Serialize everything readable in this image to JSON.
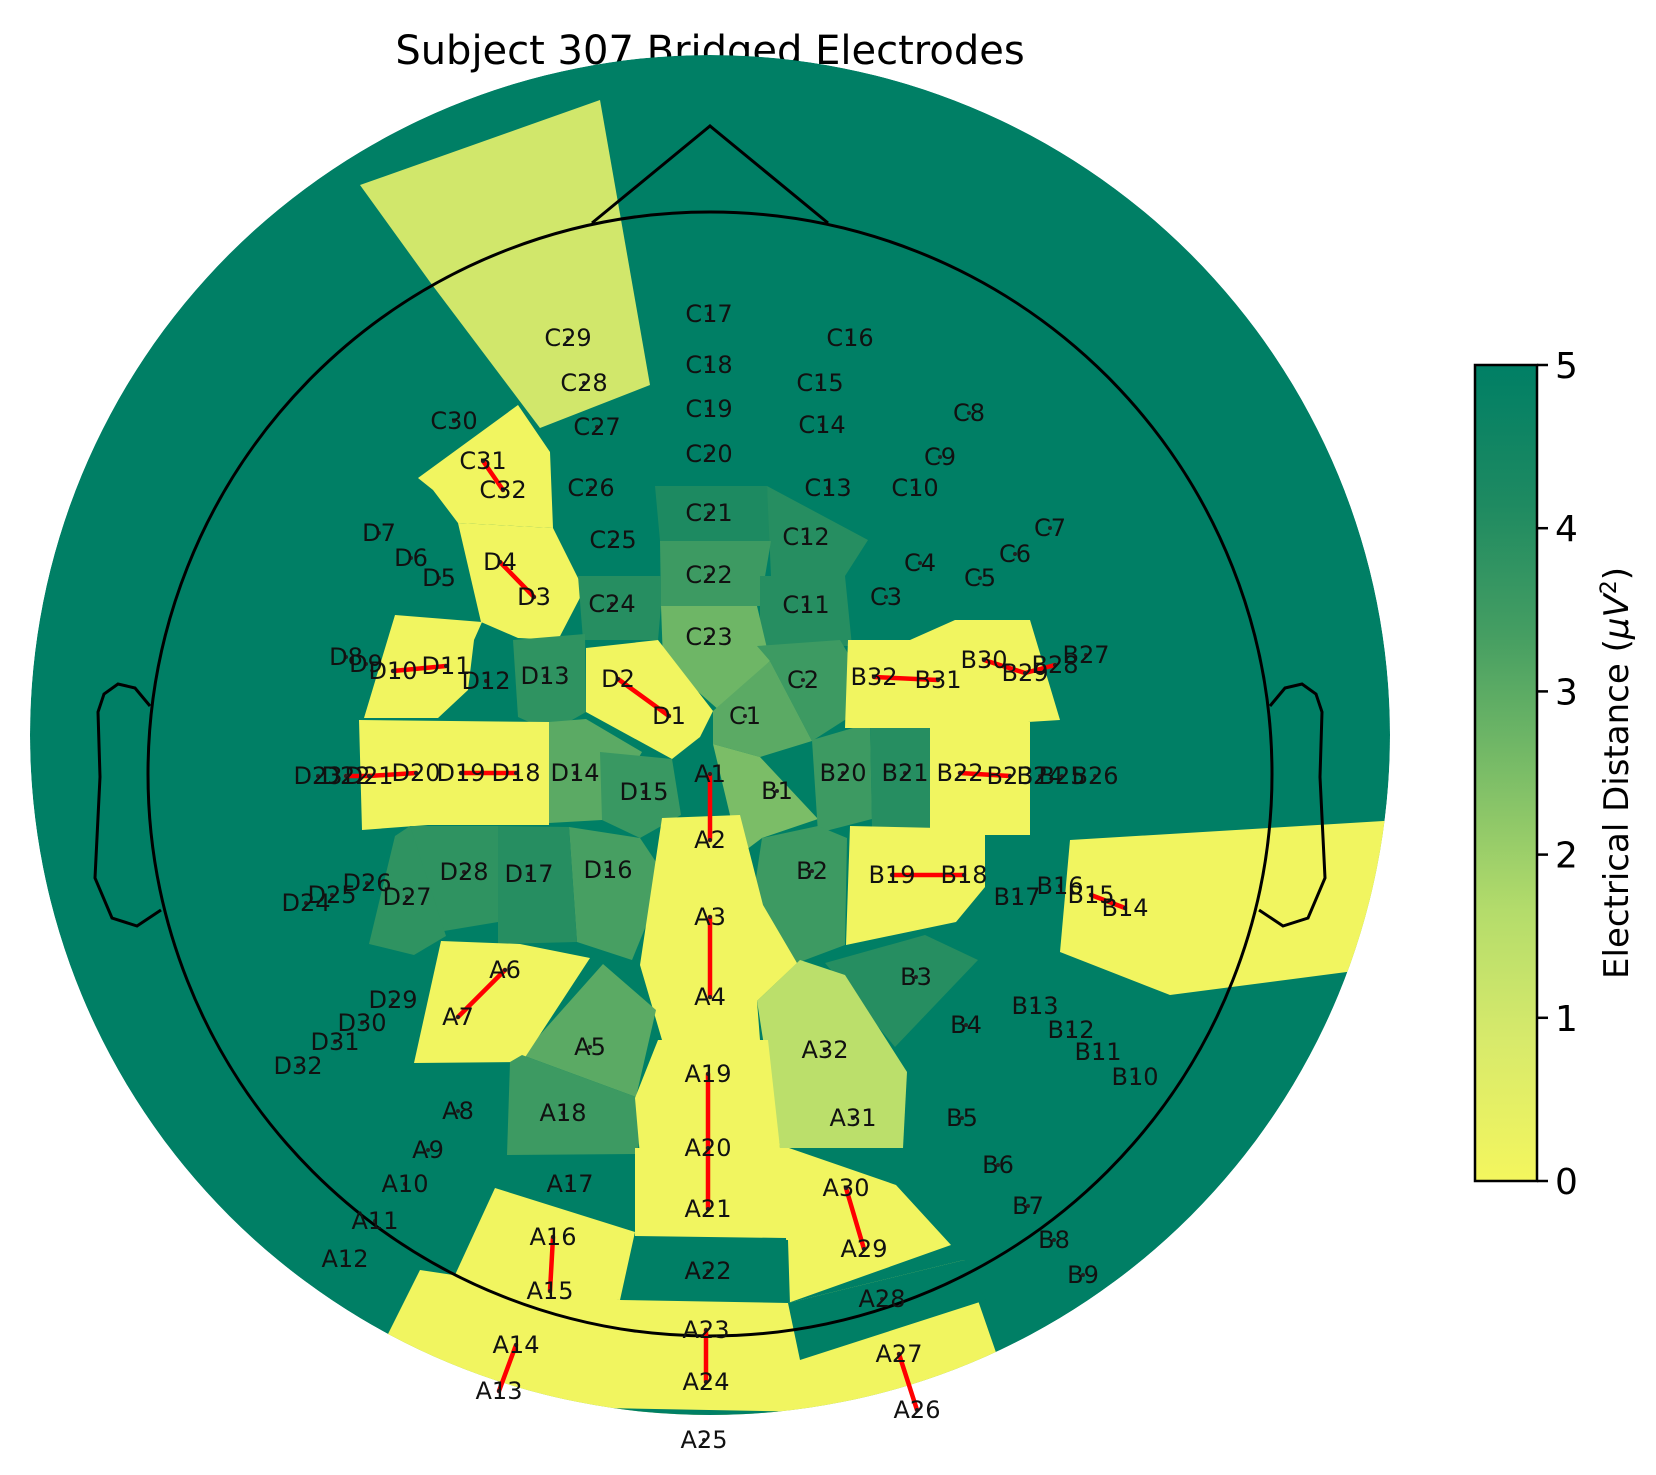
{
  "chart_data": {
    "type": "heatmap",
    "title": "Subject 307 Bridged Electrodes",
    "colorbar": {
      "label_prefix": "Electrical Distance (",
      "label_unit": "μV",
      "label_exp": "2",
      "label_suffix": ")",
      "min": 0,
      "max": 5,
      "ticks": [
        "0",
        "1",
        "2",
        "3",
        "4",
        "5"
      ],
      "colors": [
        "#f4f65e",
        "#d8ea6b",
        "#b4dc6b",
        "#7bbd67",
        "#459e62",
        "#1e8a61",
        "#007f65"
      ]
    },
    "background_level": 5,
    "electrodes": [
      {
        "name": "A1",
        "value": 0.1
      },
      {
        "name": "A2",
        "value": 0.1
      },
      {
        "name": "A3",
        "value": 0.1
      },
      {
        "name": "A4",
        "value": 0.1
      },
      {
        "name": "A5",
        "value": 3.0
      },
      {
        "name": "A6",
        "value": 0.1
      },
      {
        "name": "A7",
        "value": 0.1
      },
      {
        "name": "A8",
        "value": 5.0
      },
      {
        "name": "A9",
        "value": 5.0
      },
      {
        "name": "A10",
        "value": 5.0
      },
      {
        "name": "A11",
        "value": 5.0
      },
      {
        "name": "A12",
        "value": 5.0
      },
      {
        "name": "A13",
        "value": 0.1
      },
      {
        "name": "A14",
        "value": 0.1
      },
      {
        "name": "A15",
        "value": 0.1
      },
      {
        "name": "A16",
        "value": 0.1
      },
      {
        "name": "A17",
        "value": 5.0
      },
      {
        "name": "A18",
        "value": 3.5
      },
      {
        "name": "A19",
        "value": 0.1
      },
      {
        "name": "A20",
        "value": 0.1
      },
      {
        "name": "A21",
        "value": 0.1
      },
      {
        "name": "A22",
        "value": 5.0
      },
      {
        "name": "A23",
        "value": 0.1
      },
      {
        "name": "A24",
        "value": 0.1
      },
      {
        "name": "A25",
        "value": 5.0
      },
      {
        "name": "A26",
        "value": 0.1
      },
      {
        "name": "A27",
        "value": 0.1
      },
      {
        "name": "A28",
        "value": 5.0
      },
      {
        "name": "A29",
        "value": 0.1
      },
      {
        "name": "A30",
        "value": 0.1
      },
      {
        "name": "A31",
        "value": 1.5
      },
      {
        "name": "A32",
        "value": 1.5
      },
      {
        "name": "B1",
        "value": 2.5
      },
      {
        "name": "B2",
        "value": 3.5
      },
      {
        "name": "B3",
        "value": 4.0
      },
      {
        "name": "B4",
        "value": 5.0
      },
      {
        "name": "B5",
        "value": 5.0
      },
      {
        "name": "B6",
        "value": 5.0
      },
      {
        "name": "B7",
        "value": 5.0
      },
      {
        "name": "B8",
        "value": 5.0
      },
      {
        "name": "B9",
        "value": 5.0
      },
      {
        "name": "B10",
        "value": 5.0
      },
      {
        "name": "B11",
        "value": 5.0
      },
      {
        "name": "B12",
        "value": 5.0
      },
      {
        "name": "B13",
        "value": 5.0
      },
      {
        "name": "B14",
        "value": 0.1
      },
      {
        "name": "B15",
        "value": 0.1
      },
      {
        "name": "B16",
        "value": 5.0
      },
      {
        "name": "B17",
        "value": 5.0
      },
      {
        "name": "B18",
        "value": 0.1
      },
      {
        "name": "B19",
        "value": 0.1
      },
      {
        "name": "B20",
        "value": 3.5
      },
      {
        "name": "B21",
        "value": 4.0
      },
      {
        "name": "B22",
        "value": 0.1
      },
      {
        "name": "B23",
        "value": 0.1
      },
      {
        "name": "B24",
        "value": 0.1
      },
      {
        "name": "B25",
        "value": 0.1
      },
      {
        "name": "B26",
        "value": 5.0
      },
      {
        "name": "B27",
        "value": 5.0
      },
      {
        "name": "B28",
        "value": 0.1
      },
      {
        "name": "B29",
        "value": 0.1
      },
      {
        "name": "B30",
        "value": 0.1
      },
      {
        "name": "B31",
        "value": 0.1
      },
      {
        "name": "B32",
        "value": 0.1
      },
      {
        "name": "C1",
        "value": 3.0
      },
      {
        "name": "C2",
        "value": 3.5
      },
      {
        "name": "C3",
        "value": 5.0
      },
      {
        "name": "C4",
        "value": 5.0
      },
      {
        "name": "C5",
        "value": 5.0
      },
      {
        "name": "C6",
        "value": 5.0
      },
      {
        "name": "C7",
        "value": 5.0
      },
      {
        "name": "C8",
        "value": 5.0
      },
      {
        "name": "C9",
        "value": 5.0
      },
      {
        "name": "C10",
        "value": 5.0
      },
      {
        "name": "C11",
        "value": 4.0
      },
      {
        "name": "C12",
        "value": 4.0
      },
      {
        "name": "C13",
        "value": 5.0
      },
      {
        "name": "C14",
        "value": 5.0
      },
      {
        "name": "C15",
        "value": 5.0
      },
      {
        "name": "C16",
        "value": 5.0
      },
      {
        "name": "C17",
        "value": 5.0
      },
      {
        "name": "C18",
        "value": 5.0
      },
      {
        "name": "C19",
        "value": 5.0
      },
      {
        "name": "C20",
        "value": 5.0
      },
      {
        "name": "C21",
        "value": 4.2
      },
      {
        "name": "C22",
        "value": 3.5
      },
      {
        "name": "C23",
        "value": 2.7
      },
      {
        "name": "C24",
        "value": 4.0
      },
      {
        "name": "C25",
        "value": 5.0
      },
      {
        "name": "C26",
        "value": 5.0
      },
      {
        "name": "C27",
        "value": 5.0
      },
      {
        "name": "C28",
        "value": 1.0
      },
      {
        "name": "C29",
        "value": 1.0
      },
      {
        "name": "C30",
        "value": 5.0
      },
      {
        "name": "C31",
        "value": 0.1
      },
      {
        "name": "C32",
        "value": 0.1
      },
      {
        "name": "D1",
        "value": 0.1
      },
      {
        "name": "D2",
        "value": 0.1
      },
      {
        "name": "D3",
        "value": 0.1
      },
      {
        "name": "D4",
        "value": 0.1
      },
      {
        "name": "D5",
        "value": 5.0
      },
      {
        "name": "D6",
        "value": 5.0
      },
      {
        "name": "D7",
        "value": 5.0
      },
      {
        "name": "D8",
        "value": 0.1
      },
      {
        "name": "D9",
        "value": 0.1
      },
      {
        "name": "D10",
        "value": 0.1
      },
      {
        "name": "D11",
        "value": 0.1
      },
      {
        "name": "D12",
        "value": 5.0
      },
      {
        "name": "D13",
        "value": 3.8
      },
      {
        "name": "D14",
        "value": 3.0
      },
      {
        "name": "D15",
        "value": 3.6
      },
      {
        "name": "D16",
        "value": 3.3
      },
      {
        "name": "D17",
        "value": 4.0
      },
      {
        "name": "D18",
        "value": 0.1
      },
      {
        "name": "D19",
        "value": 0.1
      },
      {
        "name": "D20",
        "value": 0.1
      },
      {
        "name": "D21",
        "value": 0.1
      },
      {
        "name": "D22",
        "value": 0.1
      },
      {
        "name": "D23",
        "value": 0.1
      },
      {
        "name": "D24",
        "value": 5.0
      },
      {
        "name": "D25",
        "value": 3.8
      },
      {
        "name": "D26",
        "value": 3.8
      },
      {
        "name": "D27",
        "value": 3.8
      },
      {
        "name": "D28",
        "value": 3.8
      },
      {
        "name": "D29",
        "value": 5.0
      },
      {
        "name": "D30",
        "value": 5.0
      },
      {
        "name": "D31",
        "value": 5.0
      },
      {
        "name": "D32",
        "value": 5.0
      }
    ],
    "bridged_pairs": [
      [
        "A1",
        "A2"
      ],
      [
        "A3",
        "A4"
      ],
      [
        "A6",
        "A7"
      ],
      [
        "A13",
        "A14"
      ],
      [
        "A15",
        "A16"
      ],
      [
        "A19",
        "A20"
      ],
      [
        "A20",
        "A21"
      ],
      [
        "A23",
        "A24"
      ],
      [
        "A26",
        "A27"
      ],
      [
        "A29",
        "A30"
      ],
      [
        "B14",
        "B15"
      ],
      [
        "B18",
        "B19"
      ],
      [
        "B22",
        "B23"
      ],
      [
        "B28",
        "B29"
      ],
      [
        "B29",
        "B30"
      ],
      [
        "B31",
        "B32"
      ],
      [
        "C31",
        "C32"
      ],
      [
        "D1",
        "D2"
      ],
      [
        "D3",
        "D4"
      ],
      [
        "D10",
        "D11"
      ],
      [
        "D18",
        "D19"
      ],
      [
        "D20",
        "D21"
      ],
      [
        "D21",
        "D22"
      ]
    ],
    "bridge_color": "#ff0000"
  }
}
